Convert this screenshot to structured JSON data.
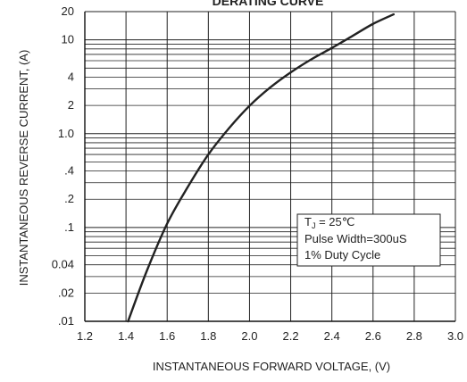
{
  "chart_data": {
    "type": "line",
    "title": "DERATING CURVE",
    "xlabel": "INSTANTANEOUS FORWARD VOLTAGE, (V)",
    "ylabel": "INSTANTANEOUS REVERSE CURRENT, (A)",
    "x_scale": "linear",
    "y_scale": "log",
    "xlim": [
      1.2,
      3.0
    ],
    "ylim": [
      0.01,
      20
    ],
    "x_ticks": [
      "1.2",
      "1.4",
      "1.6",
      "1.8",
      "2.0",
      "2.2",
      "2.4",
      "2.6",
      "2.8",
      "3.0"
    ],
    "y_tick_labels": [
      {
        "value": 20,
        "label": "20"
      },
      {
        "value": 10,
        "label": "10"
      },
      {
        "value": 4,
        "label": "4"
      },
      {
        "value": 2,
        "label": "2"
      },
      {
        "value": 1.0,
        "label": "1.0"
      },
      {
        "value": 0.4,
        "label": ".4"
      },
      {
        "value": 0.2,
        "label": ".2"
      },
      {
        "value": 0.1,
        "label": ".1"
      },
      {
        "value": 0.04,
        "label": "0.04"
      },
      {
        "value": 0.02,
        "label": ".02"
      },
      {
        "value": 0.01,
        "label": ".01"
      }
    ],
    "grid": true,
    "series": [
      {
        "x": [
          1.41,
          1.5,
          1.6,
          1.7,
          1.8,
          1.9,
          2.0,
          2.1,
          2.2,
          2.3,
          2.4,
          2.5,
          2.6,
          2.7
        ],
        "y": [
          0.01,
          0.034,
          0.11,
          0.27,
          0.6,
          1.14,
          1.98,
          3.1,
          4.5,
          6.2,
          8.2,
          11,
          14.8,
          18.7
        ],
        "color": "#222222"
      }
    ],
    "annotation": {
      "lines": [
        "T",
        "J",
        " = 25",
        "℃",
        "Pulse Width=300uS",
        "1% Duty Cycle"
      ],
      "position": "lower-right"
    }
  }
}
